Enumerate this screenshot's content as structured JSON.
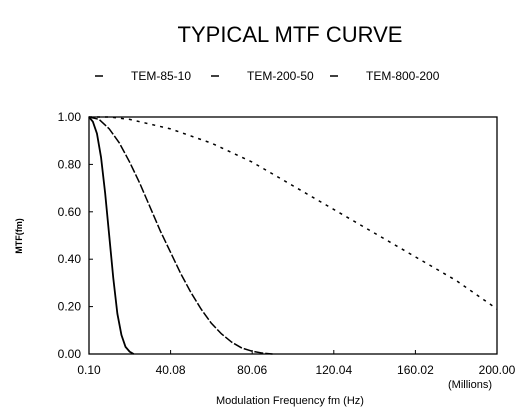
{
  "chart_data": {
    "type": "line",
    "title": "TYPICAL MTF CURVE",
    "xlabel": "Modulation Frequency   fm  (Hz)",
    "ylabel": "MTF(fm)",
    "x_multiplier_label": "(Millions)",
    "xlim": [
      0.1,
      200.0
    ],
    "ylim": [
      0.0,
      1.0
    ],
    "x_ticks": [
      "0.10",
      "40.08",
      "80.06",
      "120.04",
      "160.02",
      "200.00"
    ],
    "y_ticks": [
      "0.00",
      "0.20",
      "0.40",
      "0.60",
      "0.80",
      "1.00"
    ],
    "grid": false,
    "legend_position": "top",
    "series": [
      {
        "name": "TEM-85-10",
        "style": "solid",
        "color": "#000000",
        "x": [
          0.1,
          2,
          4,
          6,
          8,
          10,
          12,
          14,
          16,
          18,
          20,
          22
        ],
        "y": [
          1.0,
          0.98,
          0.93,
          0.83,
          0.68,
          0.5,
          0.32,
          0.17,
          0.08,
          0.03,
          0.01,
          0.0
        ]
      },
      {
        "name": "TEM-200-50",
        "style": "long-dash",
        "color": "#000000",
        "x": [
          0.1,
          5,
          10,
          15,
          20,
          25,
          30,
          35,
          40,
          45,
          50,
          55,
          60,
          65,
          70,
          75,
          80,
          85,
          90
        ],
        "y": [
          1.0,
          0.99,
          0.95,
          0.89,
          0.81,
          0.72,
          0.62,
          0.52,
          0.43,
          0.34,
          0.26,
          0.19,
          0.13,
          0.085,
          0.05,
          0.025,
          0.012,
          0.004,
          0.0
        ]
      },
      {
        "name": "TEM-800-200",
        "style": "short-dash",
        "color": "#000000",
        "x": [
          0.1,
          10,
          20,
          30,
          40,
          50,
          60,
          70,
          80,
          90,
          100,
          110,
          120,
          130,
          140,
          150,
          160,
          170,
          180,
          190,
          200
        ],
        "y": [
          1.0,
          1.0,
          0.99,
          0.97,
          0.95,
          0.92,
          0.89,
          0.85,
          0.81,
          0.76,
          0.71,
          0.66,
          0.61,
          0.56,
          0.51,
          0.46,
          0.41,
          0.36,
          0.31,
          0.25,
          0.19
        ]
      }
    ]
  }
}
